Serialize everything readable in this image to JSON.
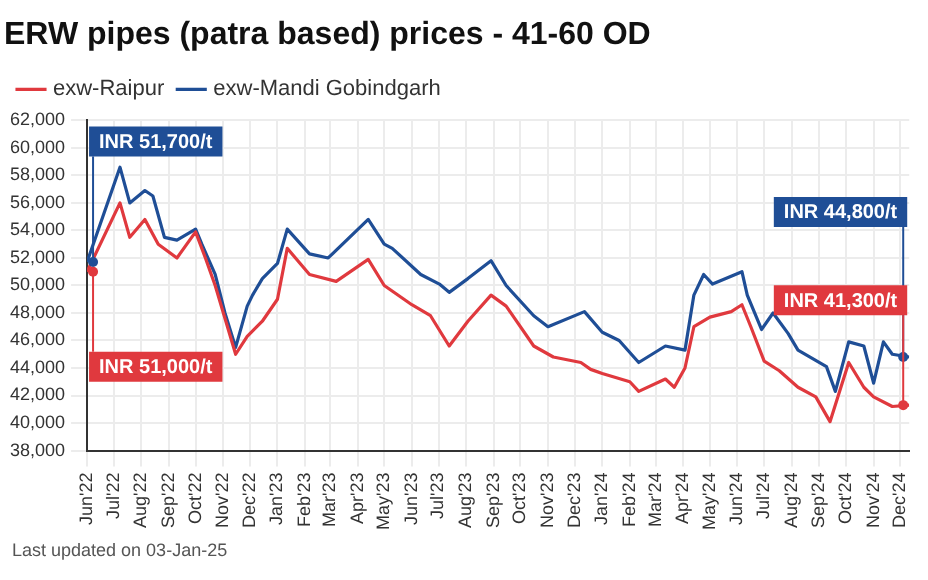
{
  "chart_data": {
    "type": "line",
    "title": "ERW pipes (patra based) prices - 41-60 OD",
    "legend": "top",
    "grid": true,
    "xlim": [
      "2022-06-01",
      "2024-12-11"
    ],
    "ylim": [
      38000,
      62000
    ],
    "yticks": [
      {
        "value": 38000,
        "label": "38,000"
      },
      {
        "value": 40000,
        "label": "40,000"
      },
      {
        "value": 42000,
        "label": "42,000"
      },
      {
        "value": 44000,
        "label": "44,000"
      },
      {
        "value": 46000,
        "label": "46,000"
      },
      {
        "value": 48000,
        "label": "48,000"
      },
      {
        "value": 50000,
        "label": "50,000"
      },
      {
        "value": 52000,
        "label": "52,000"
      },
      {
        "value": 54000,
        "label": "54,000"
      },
      {
        "value": 56000,
        "label": "56,000"
      },
      {
        "value": 58000,
        "label": "58,000"
      },
      {
        "value": 60000,
        "label": "60,000"
      },
      {
        "value": 62000,
        "label": "62,000"
      }
    ],
    "xticks": [
      {
        "value": "2022-06",
        "label": "Jun'22"
      },
      {
        "value": "2022-07",
        "label": "Jul'22"
      },
      {
        "value": "2022-08",
        "label": "Aug'22"
      },
      {
        "value": "2022-09",
        "label": "Sep'22"
      },
      {
        "value": "2022-10",
        "label": "Oct'22"
      },
      {
        "value": "2022-11",
        "label": "Nov'22"
      },
      {
        "value": "2022-12",
        "label": "Dec'22"
      },
      {
        "value": "2023-01",
        "label": "Jan'23"
      },
      {
        "value": "2023-02",
        "label": "Feb'23"
      },
      {
        "value": "2023-03",
        "label": "Mar'23"
      },
      {
        "value": "2023-04",
        "label": "Apr'23"
      },
      {
        "value": "2023-05",
        "label": "May'23"
      },
      {
        "value": "2023-06",
        "label": "Jun'23"
      },
      {
        "value": "2023-07",
        "label": "Jul'23"
      },
      {
        "value": "2023-08",
        "label": "Aug'23"
      },
      {
        "value": "2023-09",
        "label": "Sep'23"
      },
      {
        "value": "2023-10",
        "label": "Oct'23"
      },
      {
        "value": "2023-11",
        "label": "Nov'23"
      },
      {
        "value": "2023-12",
        "label": "Dec'23"
      },
      {
        "value": "2024-01",
        "label": "Jan'24"
      },
      {
        "value": "2024-02",
        "label": "Feb'24"
      },
      {
        "value": "2024-03",
        "label": "Mar'24"
      },
      {
        "value": "2024-04",
        "label": "Apr'24"
      },
      {
        "value": "2024-05",
        "label": "May'24"
      },
      {
        "value": "2024-06",
        "label": "Jun'24"
      },
      {
        "value": "2024-07",
        "label": "Jul'24"
      },
      {
        "value": "2024-08",
        "label": "Aug'24"
      },
      {
        "value": "2024-09",
        "label": "Sep'24"
      },
      {
        "value": "2024-10",
        "label": "Oct'24"
      },
      {
        "value": "2024-11",
        "label": "Nov'24"
      },
      {
        "value": "2024-12",
        "label": "Dec'24"
      }
    ],
    "series": [
      {
        "name": "exw-Raipur",
        "color": "#e0393e",
        "x": [
          "2022-06-01",
          "2022-07-08",
          "2022-07-19",
          "2022-08-05",
          "2022-08-20",
          "2022-09-10",
          "2022-10-01",
          "2022-10-12",
          "2022-10-23",
          "2022-11-15",
          "2022-11-28",
          "2022-12-15",
          "2023-01-01",
          "2023-01-12",
          "2023-02-06",
          "2023-03-08",
          "2023-04-13",
          "2023-05-01",
          "2023-06-01",
          "2023-06-22",
          "2023-07-13",
          "2023-08-03",
          "2023-08-29",
          "2023-09-15",
          "2023-10-16",
          "2023-11-07",
          "2023-12-08",
          "2023-12-19",
          "2024-01-01",
          "2024-02-01",
          "2024-02-11",
          "2024-03-12",
          "2024-03-22",
          "2024-04-03",
          "2024-04-13",
          "2024-05-01",
          "2024-05-25",
          "2024-06-06",
          "2024-06-16",
          "2024-07-01",
          "2024-07-18",
          "2024-08-08",
          "2024-08-28",
          "2024-09-13",
          "2024-10-04",
          "2024-10-21",
          "2024-11-01",
          "2024-11-22",
          "2024-12-11"
        ],
        "values": [
          51000,
          56000,
          53500,
          54800,
          53000,
          52000,
          53900,
          52000,
          50000,
          45000,
          46300,
          47400,
          49000,
          52700,
          50800,
          50300,
          51900,
          50000,
          48600,
          47800,
          45600,
          47400,
          49300,
          48500,
          45600,
          44800,
          44400,
          43900,
          43600,
          43000,
          42300,
          43200,
          42600,
          44000,
          47000,
          47700,
          48100,
          48600,
          47000,
          44500,
          43800,
          42600,
          41900,
          40100,
          44400,
          42600,
          41900,
          41200,
          41300
        ]
      },
      {
        "name": "exw-Mandi Gobindgarh",
        "color": "#1f4e96",
        "x": [
          "2022-06-01",
          "2022-07-08",
          "2022-07-19",
          "2022-08-05",
          "2022-08-14",
          "2022-08-27",
          "2022-09-10",
          "2022-10-01",
          "2022-10-08",
          "2022-10-23",
          "2022-11-03",
          "2022-11-15",
          "2022-11-28",
          "2022-12-04",
          "2022-12-15",
          "2023-01-01",
          "2023-01-12",
          "2023-02-06",
          "2023-02-27",
          "2023-04-13",
          "2023-05-01",
          "2023-05-10",
          "2023-06-11",
          "2023-07-02",
          "2023-07-13",
          "2023-08-03",
          "2023-08-29",
          "2023-09-15",
          "2023-10-16",
          "2023-11-01",
          "2023-12-12",
          "2024-01-01",
          "2024-01-20",
          "2024-02-11",
          "2024-03-12",
          "2024-04-03",
          "2024-04-13",
          "2024-04-24",
          "2024-05-04",
          "2024-06-06",
          "2024-06-12",
          "2024-06-28",
          "2024-07-11",
          "2024-07-28",
          "2024-08-08",
          "2024-09-09",
          "2024-09-19",
          "2024-10-04",
          "2024-10-21",
          "2024-11-01",
          "2024-11-12",
          "2024-11-22",
          "2024-12-11"
        ],
        "values": [
          51700,
          58600,
          56000,
          56900,
          56500,
          53500,
          53300,
          54100,
          53000,
          50800,
          48000,
          45500,
          48500,
          49300,
          50500,
          51600,
          54100,
          52300,
          52000,
          54800,
          53000,
          52700,
          50800,
          50100,
          49500,
          50500,
          51800,
          50000,
          47800,
          47000,
          48100,
          46600,
          46000,
          44400,
          45600,
          45300,
          49300,
          50800,
          50100,
          51000,
          49300,
          46800,
          48000,
          46500,
          45300,
          44100,
          42300,
          45900,
          45600,
          42900,
          45900,
          45000,
          44800
        ]
      }
    ],
    "annotations": [
      {
        "text": "INR 51,700/t",
        "x": "2022-06-01",
        "y": 51700
      },
      {
        "text": "INR 51,000/t",
        "x": "2022-06-01",
        "y": 51000
      },
      {
        "text": "INR 44,800/t",
        "x": "2024-12-11",
        "y": 44800
      },
      {
        "text": "INR 41,300/t",
        "x": "2024-12-11",
        "y": 41300
      },
      "Last updated on 03-Jan-25"
    ]
  }
}
